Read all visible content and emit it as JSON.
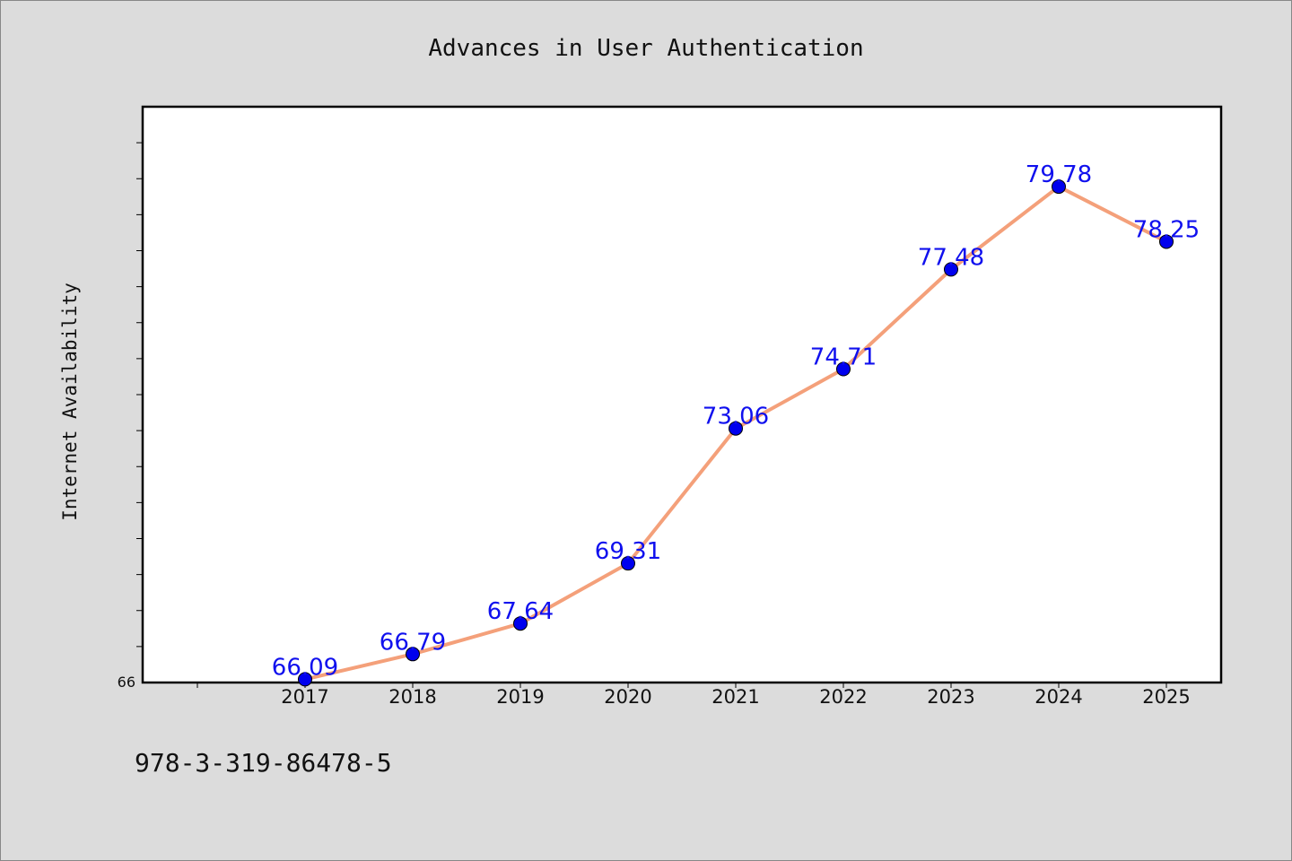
{
  "chart_data": {
    "type": "line",
    "title": "Advances in User Authentication",
    "xlabel": "",
    "ylabel": "Internet Availability",
    "categories": [
      "2017",
      "2018",
      "2019",
      "2020",
      "2021",
      "2022",
      "2023",
      "2024",
      "2025"
    ],
    "values": [
      66.09,
      66.79,
      67.64,
      69.31,
      73.06,
      74.71,
      77.48,
      79.78,
      78.25
    ],
    "value_labels": [
      "66.09",
      "66.79",
      "67.64",
      "69.31",
      "73.06",
      "74.71",
      "77.48",
      "79.78",
      "78.25"
    ],
    "ylim": [
      66,
      82
    ],
    "y_tick_labels": [
      "66"
    ],
    "grid": false,
    "line_color": "#f4a07a",
    "marker_color": "#0000ee",
    "label_color": "#1010ee"
  },
  "footer_text": "978-3-319-86478-5"
}
